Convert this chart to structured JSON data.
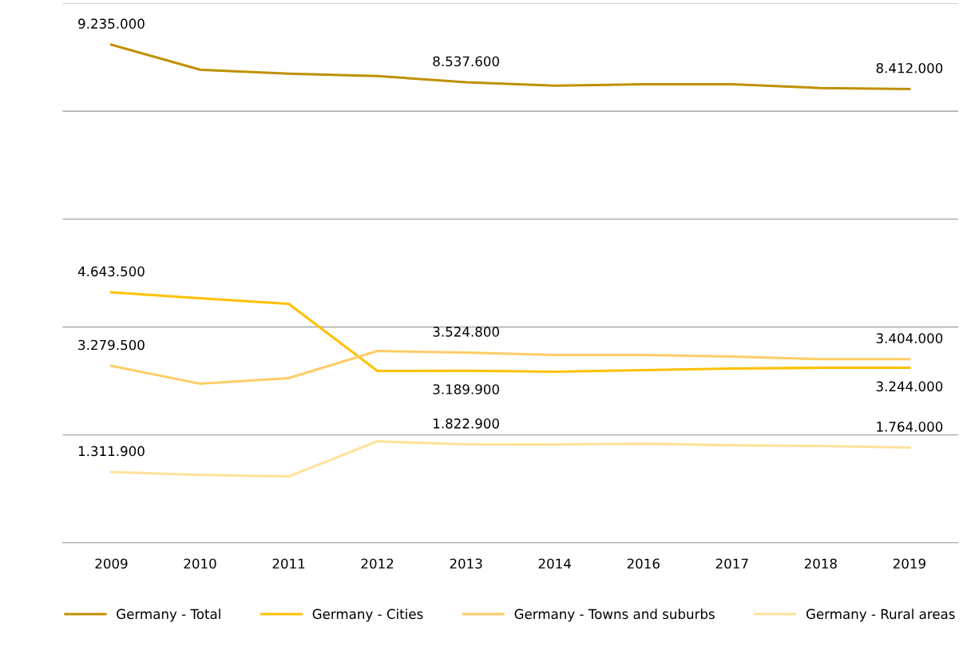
{
  "chart_data": {
    "type": "line",
    "categories": [
      "2009",
      "2010",
      "2011",
      "2012",
      "2013",
      "2014",
      "2016",
      "2017",
      "2018",
      "2019"
    ],
    "series": [
      {
        "name": "Germany - Total",
        "color": "#bf9000",
        "values": [
          9235000,
          8770000,
          8696000,
          8652000,
          8537600,
          8474000,
          8500000,
          8500000,
          8430000,
          8412000
        ],
        "value_labels": [
          "9.235.000",
          null,
          null,
          null,
          "8.537.600",
          null,
          null,
          null,
          null,
          "8.412.000"
        ]
      },
      {
        "name": "Germany - Cities",
        "color": "#ffc000",
        "values": [
          4643500,
          4533000,
          4430000,
          3185000,
          3189900,
          3170000,
          3200000,
          3230000,
          3244000,
          3244000
        ],
        "value_labels": [
          "4.643.500",
          null,
          null,
          null,
          "3.189.900",
          null,
          null,
          null,
          null,
          "3.244.000"
        ]
      },
      {
        "name": "Germany - Towns and suburbs",
        "color": "#ffcc66",
        "values": [
          3279500,
          2948000,
          3052000,
          3556000,
          3524800,
          3481000,
          3481000,
          3452000,
          3404000,
          3404000
        ],
        "value_labels": [
          "3.279.500",
          null,
          null,
          null,
          "3.524.800",
          null,
          null,
          null,
          null,
          "3.404.000"
        ]
      },
      {
        "name": "Germany - Rural areas",
        "color": "#ffe199",
        "values": [
          1311900,
          1259000,
          1230000,
          1881000,
          1822900,
          1822000,
          1837000,
          1807000,
          1793000,
          1764000
        ],
        "value_labels": [
          "1.311.900",
          null,
          null,
          null,
          "1.822.900",
          null,
          null,
          null,
          null,
          "1.764.000"
        ]
      }
    ],
    "ylim": [
      0,
      10000000
    ],
    "yticks": [
      {
        "value": 0,
        "label": null
      },
      {
        "value": 2000000,
        "label": null
      },
      {
        "value": 4000000,
        "label": null
      },
      {
        "value": 6000000,
        "label": null
      },
      {
        "value": 8000000,
        "label": null
      },
      {
        "value": 10000000,
        "label": null
      }
    ],
    "tick_labels": "x",
    "grid": "y",
    "legend": "bottom",
    "marker": "none",
    "line_style": "solid"
  }
}
